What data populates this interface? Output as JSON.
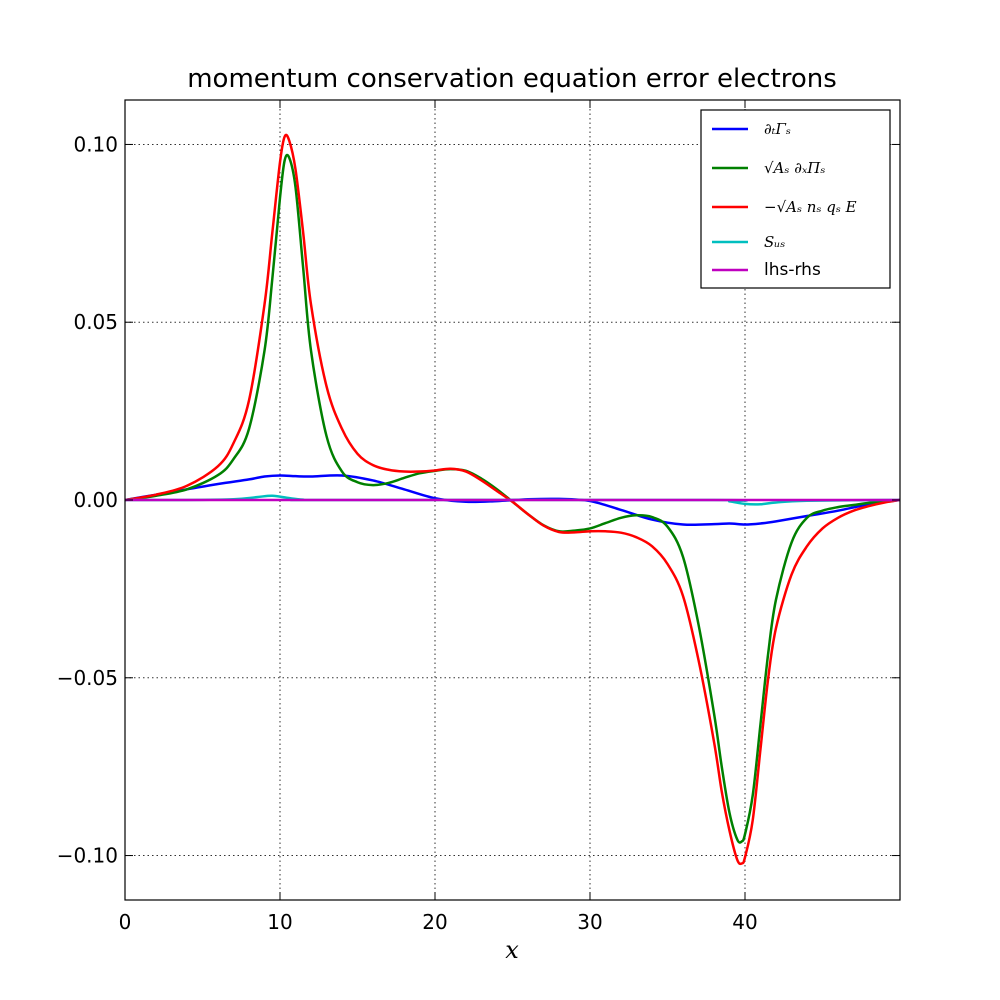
{
  "chart_data": {
    "type": "line",
    "title": "momentum conservation equation error electrons",
    "xlabel": "x",
    "ylabel": "",
    "xlim": [
      0,
      50
    ],
    "ylim": [
      -0.1125,
      0.1125
    ],
    "xticks": [
      0,
      10,
      20,
      30,
      40
    ],
    "xtick_labels": [
      "0",
      "10",
      "20",
      "30",
      "40"
    ],
    "yticks": [
      0.1,
      0.05,
      0.0,
      -0.05,
      -0.1
    ],
    "ytick_labels": [
      "0.10",
      "0.05",
      "0.00",
      "−0.05",
      "−0.10"
    ],
    "grid": true,
    "legend_position": "top-right",
    "series": [
      {
        "name": "∂ₜΓₛ",
        "color": "#0000ff",
        "x": [
          0,
          2,
          4,
          6,
          8,
          9,
          10,
          11,
          12,
          14,
          16,
          18,
          20,
          22,
          24,
          26,
          28,
          30,
          32,
          34,
          36,
          38,
          39,
          40,
          41,
          42,
          44,
          46,
          48,
          50
        ],
        "y": [
          0,
          0.0015,
          0.003,
          0.0045,
          0.0058,
          0.0066,
          0.0069,
          0.0067,
          0.0066,
          0.0069,
          0.0055,
          0.003,
          0.0005,
          -0.0005,
          -0.0003,
          0.0002,
          0.0003,
          -0.0003,
          -0.0028,
          -0.0055,
          -0.0069,
          -0.0068,
          -0.0066,
          -0.0069,
          -0.0066,
          -0.006,
          -0.0045,
          -0.003,
          -0.0012,
          0
        ]
      },
      {
        "name": "√Aₛ ∂ₓΠₛ",
        "color": "#008000",
        "x": [
          0,
          2,
          4,
          6,
          7,
          8,
          9,
          9.5,
          10,
          10.3,
          10.6,
          11,
          11.5,
          12,
          13,
          14,
          15,
          16,
          17,
          18,
          19,
          20,
          21,
          22,
          23,
          24,
          25,
          26,
          27,
          28,
          29,
          30,
          31,
          32,
          33,
          34,
          35,
          36,
          37,
          38,
          38.5,
          39,
          39.5,
          39.8,
          40,
          40.5,
          41,
          41.5,
          42,
          43,
          44,
          45,
          46,
          47,
          48,
          49,
          50
        ],
        "y": [
          0,
          0.0012,
          0.003,
          0.007,
          0.0115,
          0.02,
          0.042,
          0.062,
          0.085,
          0.0955,
          0.0962,
          0.088,
          0.065,
          0.042,
          0.018,
          0.008,
          0.005,
          0.0042,
          0.0048,
          0.0062,
          0.0075,
          0.0082,
          0.0087,
          0.0082,
          0.006,
          0.003,
          -0.0005,
          -0.004,
          -0.0071,
          -0.0088,
          -0.0086,
          -0.008,
          -0.0065,
          -0.005,
          -0.0043,
          -0.0048,
          -0.0075,
          -0.016,
          -0.035,
          -0.06,
          -0.075,
          -0.088,
          -0.0955,
          -0.096,
          -0.094,
          -0.083,
          -0.063,
          -0.043,
          -0.028,
          -0.012,
          -0.005,
          -0.003,
          -0.002,
          -0.0014,
          -0.0008,
          -0.0003,
          0
        ]
      },
      {
        "name": "−√Aₛ nₛ qₛ E",
        "color": "#ff0000",
        "x": [
          0,
          2,
          4,
          6,
          7,
          8,
          9,
          9.5,
          10,
          10.3,
          10.6,
          11,
          11.5,
          12,
          13,
          14,
          15,
          16,
          17,
          18,
          19,
          20,
          21,
          22,
          23,
          24,
          25,
          26,
          27,
          28,
          29,
          30,
          31,
          32,
          33,
          34,
          35,
          36,
          37,
          38,
          38.5,
          39,
          39.5,
          39.8,
          40,
          40.5,
          41,
          41.5,
          42,
          43,
          44,
          45,
          46,
          47,
          48,
          49,
          50
        ],
        "y": [
          0,
          0.0015,
          0.004,
          0.0095,
          0.016,
          0.028,
          0.055,
          0.075,
          0.095,
          0.1022,
          0.101,
          0.093,
          0.075,
          0.055,
          0.032,
          0.02,
          0.013,
          0.0098,
          0.0085,
          0.008,
          0.008,
          0.0083,
          0.0088,
          0.008,
          0.0055,
          0.0025,
          -0.0005,
          -0.004,
          -0.0072,
          -0.009,
          -0.0091,
          -0.0088,
          -0.0088,
          -0.0092,
          -0.0105,
          -0.013,
          -0.018,
          -0.027,
          -0.045,
          -0.068,
          -0.082,
          -0.093,
          -0.1012,
          -0.1022,
          -0.1005,
          -0.09,
          -0.07,
          -0.05,
          -0.036,
          -0.021,
          -0.013,
          -0.008,
          -0.005,
          -0.003,
          -0.0017,
          -0.0007,
          0
        ]
      },
      {
        "name": "Sᵤₛ",
        "color": "#00bfbf",
        "x": [
          0,
          4,
          7,
          8.5,
          9.5,
          10.5,
          11.5,
          13,
          38,
          39,
          40,
          41,
          42,
          44,
          50
        ],
        "y": [
          0,
          0,
          0.0002,
          0.0008,
          0.0012,
          0.0006,
          0.0001,
          0,
          0,
          -0.0004,
          -0.0011,
          -0.0012,
          -0.0007,
          -0.0002,
          0
        ]
      },
      {
        "name": "lhs-rhs",
        "color": "#bf00bf",
        "x": [
          0,
          50
        ],
        "y": [
          0,
          0
        ]
      }
    ]
  }
}
